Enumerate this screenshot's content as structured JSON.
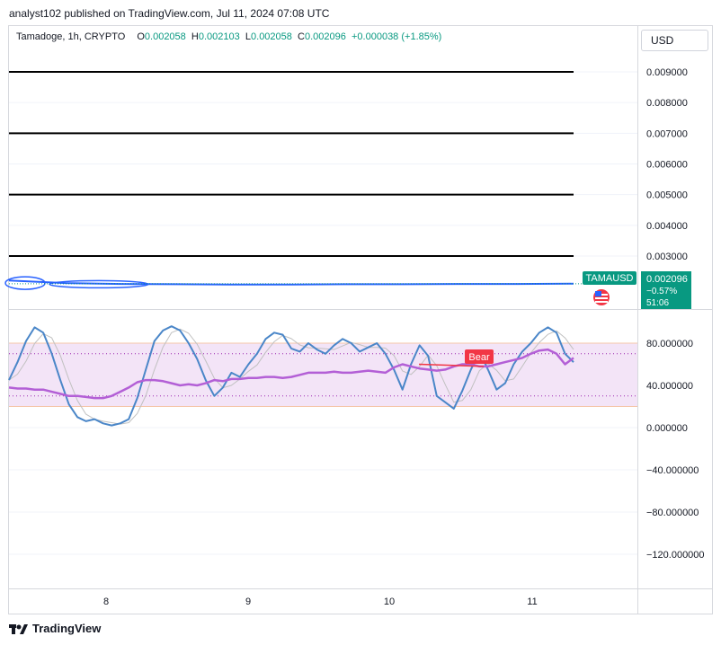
{
  "header": {
    "publisher_text": "analyst102 published on TradingView.com, Jul 11, 2024 07:08 UTC"
  },
  "legend": {
    "symbol": "Tamadoge, 1h, CRYPTO",
    "open_label": "O",
    "open": "0.002058",
    "high_label": "H",
    "high": "0.002103",
    "low_label": "L",
    "low": "0.002058",
    "close_label": "C",
    "close": "0.002096",
    "change": "+0.000038 (+1.85%)"
  },
  "currency_button": "USD",
  "price_tag": {
    "ticker": "TAMAUSD",
    "price": "0.002096",
    "change_pct": "−0.57%",
    "countdown": "51:06"
  },
  "bear_label": "Bear",
  "footer": {
    "brand": "TradingView"
  },
  "colors": {
    "bull": "#089981",
    "stoch_k": "#4a86c8",
    "stoch_d": "#c0c0c0",
    "rsi": "#b35fd6",
    "band_fill": "#f3e4f7",
    "bear": "#f23645",
    "price_tag": "#089981"
  },
  "chart_data": [
    {
      "type": "line",
      "pane": "price",
      "y_ticks": [
        "0.009000",
        "0.008000",
        "0.007000",
        "0.006000",
        "0.005000",
        "0.004000",
        "0.003000"
      ],
      "y_tick_values": [
        0.009,
        0.008,
        0.007,
        0.006,
        0.005,
        0.004,
        0.003
      ],
      "ylim": [
        0.0018,
        0.0095
      ],
      "horizontal_levels": [
        0.009,
        0.007,
        0.005,
        0.003
      ],
      "x_ticks": [
        "8",
        "9",
        "10",
        "11"
      ],
      "series": [
        {
          "values": [
            0.0022,
            0.00212,
            0.00209,
            0.00208,
            0.00207,
            0.00207,
            0.00208,
            0.00208,
            0.00209,
            0.00209,
            0.0021
          ]
        }
      ],
      "last_price": 0.002096
    },
    {
      "type": "line",
      "pane": "oscillator",
      "y_ticks": [
        "80.000000",
        "40.000000",
        "0.000000",
        "−40.000000",
        "−80.000000",
        "−120.000000"
      ],
      "y_tick_values": [
        80,
        40,
        0,
        -40,
        -80,
        -120
      ],
      "ylim": [
        -150,
        110
      ],
      "band": [
        20,
        80
      ],
      "dotted_levels": [
        70,
        30
      ],
      "x_ticks": [
        "8",
        "9",
        "10",
        "11"
      ],
      "series": [
        {
          "key": "stoch_k",
          "values": [
            45,
            62,
            82,
            95,
            90,
            70,
            45,
            22,
            10,
            6,
            8,
            4,
            2,
            4,
            8,
            28,
            55,
            82,
            92,
            96,
            92,
            80,
            65,
            45,
            30,
            38,
            52,
            48,
            60,
            70,
            84,
            90,
            88,
            75,
            72,
            80,
            74,
            70,
            78,
            84,
            80,
            72,
            76,
            80,
            70,
            55,
            36,
            60,
            78,
            68,
            30,
            24,
            18,
            35,
            55,
            72,
            55,
            36,
            42,
            60,
            72,
            80,
            90,
            95,
            90,
            70,
            62
          ]
        },
        {
          "key": "rsi",
          "values": [
            38,
            37,
            37,
            36,
            36,
            34,
            32,
            30,
            30,
            29,
            28,
            28,
            30,
            34,
            38,
            43,
            45,
            45,
            44,
            42,
            40,
            41,
            40,
            42,
            45,
            44,
            46,
            46,
            47,
            47,
            48,
            48,
            47,
            48,
            50,
            52,
            52,
            52,
            53,
            52,
            52,
            53,
            54,
            53,
            52,
            57,
            60,
            58,
            56,
            55,
            54,
            55,
            58,
            60,
            60,
            58,
            58,
            60,
            62,
            64,
            66,
            70,
            73,
            74,
            70,
            60,
            66
          ]
        }
      ],
      "divergence_line": {
        "from": 60,
        "to": 58,
        "label": "Bear"
      }
    }
  ]
}
